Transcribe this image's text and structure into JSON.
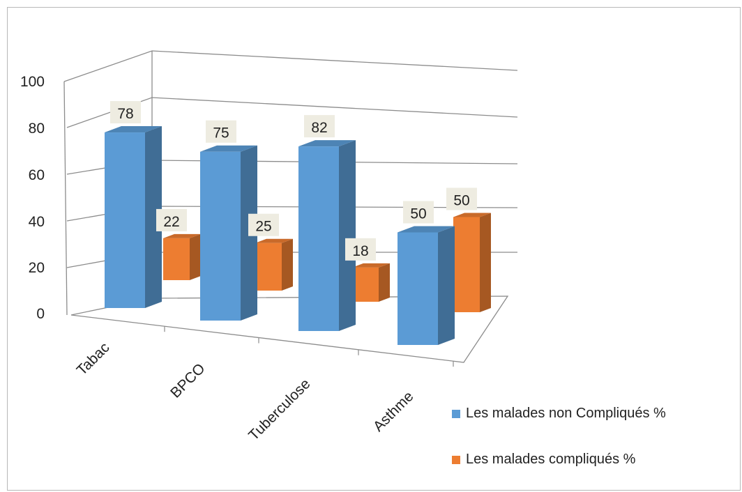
{
  "chart_data": {
    "type": "bar",
    "style": "3d-clustered-column",
    "categories": [
      "Tabac",
      "BPCO",
      "Tuberculose",
      "Asthme"
    ],
    "series": [
      {
        "name": "Les malades non Compliqués %",
        "values": [
          78,
          75,
          82,
          50
        ],
        "color": "#5B9BD5"
      },
      {
        "name": "Les malades compliqués %",
        "values": [
          22,
          25,
          18,
          50
        ],
        "color": "#ED7D31"
      }
    ],
    "title": "",
    "xlabel": "",
    "ylabel": "",
    "ylim": [
      0,
      100
    ],
    "yticks": [
      "0",
      "20",
      "40",
      "60",
      "80",
      "100"
    ],
    "grid": true,
    "legend_position": "right"
  }
}
